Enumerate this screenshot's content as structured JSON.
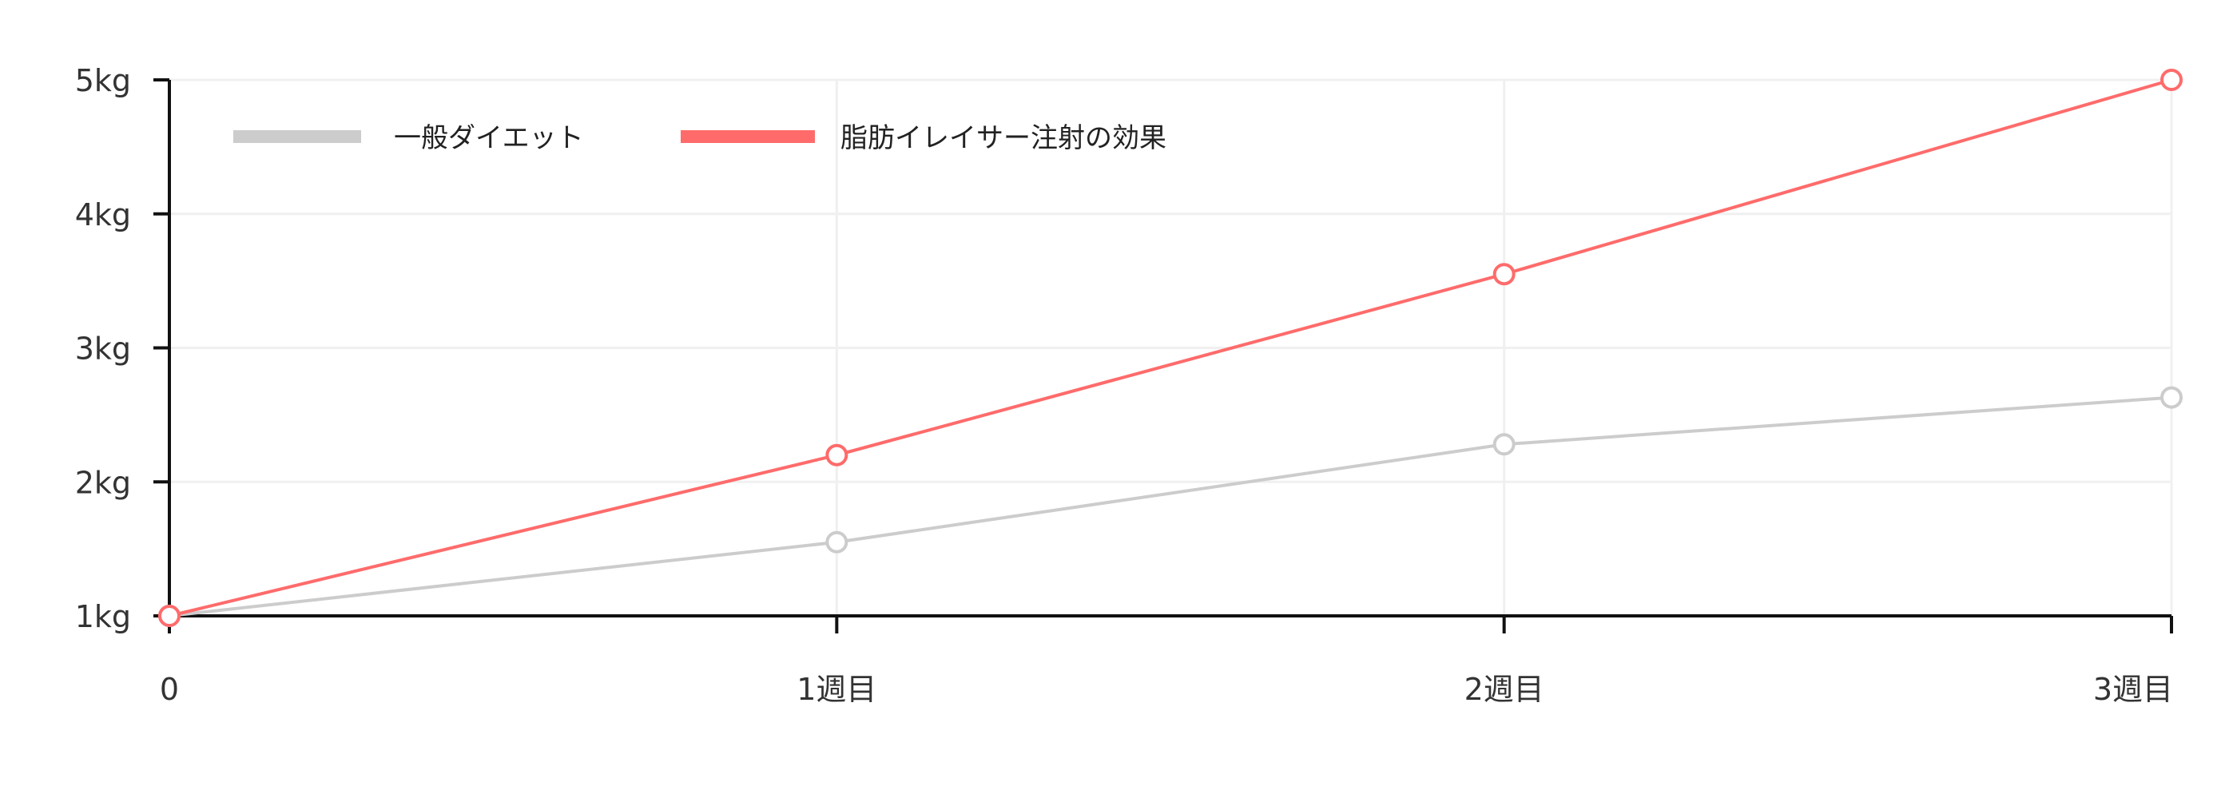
{
  "chart_data": {
    "type": "line",
    "categories": [
      "0",
      "1週目",
      "2週目",
      "3週目"
    ],
    "y_ticks": [
      "1kg",
      "2kg",
      "3kg",
      "4kg",
      "5kg"
    ],
    "ylim": [
      1,
      5
    ],
    "grid": true,
    "legend_position": "top-left",
    "series": [
      {
        "name": "一般ダイエット",
        "values": [
          1,
          1.55,
          2.28,
          2.63
        ],
        "color": "#cccccc"
      },
      {
        "name": "脂肪イレイサー注射の効果",
        "values": [
          1,
          2.2,
          3.55,
          5
        ],
        "color": "#ff6b6b"
      }
    ]
  }
}
